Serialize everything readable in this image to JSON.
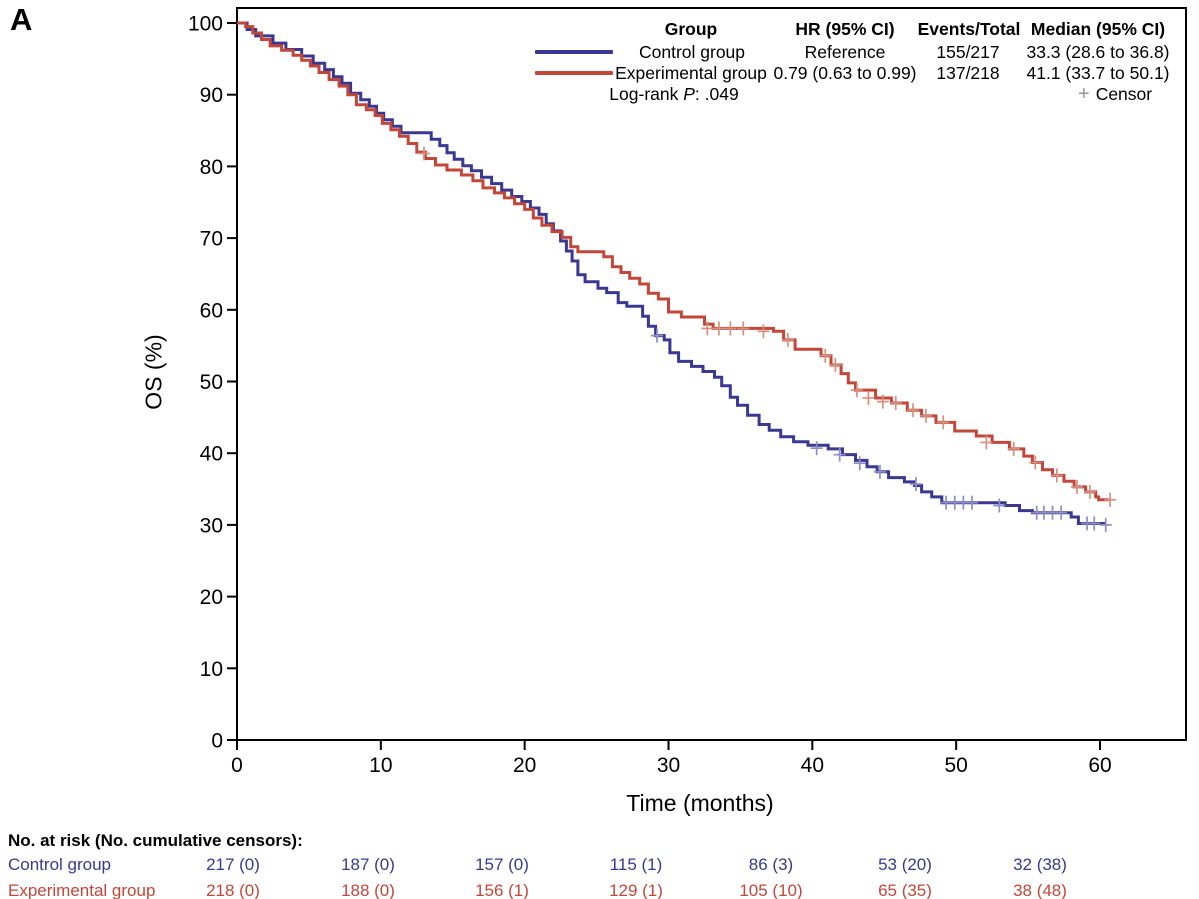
{
  "panel_label": "A",
  "colors": {
    "control": "#3a3890",
    "experimental": "#c2473a",
    "control_censor": "#8d8cc6",
    "experimental_censor": "#d6907f",
    "censor_key": "#9a9a9a",
    "axis": "#000000"
  },
  "legend": {
    "headers": {
      "group": "Group",
      "hr": "HR (95% CI)",
      "events": "Events/Total",
      "median": "Median (95% CI)"
    },
    "rows": [
      {
        "group": "Control group",
        "hr": "Reference",
        "events": "155/217",
        "median": "33.3 (28.6 to 36.8)"
      },
      {
        "group": "Experimental group",
        "hr": "0.79 (0.63 to 0.99)",
        "events": "137/218",
        "median": "41.1 (33.7 to 50.1)"
      }
    ],
    "logrank": {
      "prefix": "Log-rank ",
      "p": "P",
      "rest": ": .049"
    },
    "censor_symbol": "+",
    "censor_label": "Censor"
  },
  "chart_data": {
    "type": "line",
    "subtype": "kaplan-meier-step",
    "title": "",
    "xlabel": "Time (months)",
    "ylabel": "OS (%)",
    "xlim": [
      0,
      60
    ],
    "ylim": [
      0,
      100
    ],
    "xticks": [
      0,
      10,
      20,
      30,
      40,
      50,
      60
    ],
    "yticks": [
      0,
      10,
      20,
      30,
      40,
      50,
      60,
      70,
      80,
      90,
      100
    ],
    "grid": false,
    "legend_position": "top-right",
    "series": [
      {
        "name": "Control group",
        "color_key": "control",
        "censor_color_key": "control_censor",
        "steps": [
          [
            0,
            100
          ],
          [
            0.7,
            99.1
          ],
          [
            1.3,
            98.2
          ],
          [
            2.5,
            97.2
          ],
          [
            3.4,
            96.3
          ],
          [
            4.5,
            95.4
          ],
          [
            5.3,
            94.4
          ],
          [
            6.1,
            93.5
          ],
          [
            6.7,
            92.5
          ],
          [
            7.3,
            91.6
          ],
          [
            7.9,
            90.2
          ],
          [
            8.6,
            89.3
          ],
          [
            9.2,
            88.4
          ],
          [
            9.7,
            87.4
          ],
          [
            10.2,
            86.5
          ],
          [
            10.8,
            85.6
          ],
          [
            11.4,
            84.7
          ],
          [
            13.5,
            83.8
          ],
          [
            14.1,
            82.9
          ],
          [
            14.6,
            81.9
          ],
          [
            15.1,
            81.0
          ],
          [
            15.7,
            80.1
          ],
          [
            16.3,
            79.4
          ],
          [
            17.0,
            78.5
          ],
          [
            17.7,
            77.6
          ],
          [
            18.4,
            76.7
          ],
          [
            19.1,
            75.8
          ],
          [
            19.8,
            75.1
          ],
          [
            20.4,
            74.2
          ],
          [
            21.0,
            73.3
          ],
          [
            21.5,
            72.0
          ],
          [
            22.0,
            71.0
          ],
          [
            22.5,
            69.6
          ],
          [
            22.9,
            68.2
          ],
          [
            23.3,
            66.8
          ],
          [
            23.7,
            64.9
          ],
          [
            24.2,
            63.9
          ],
          [
            25.1,
            63.0
          ],
          [
            25.7,
            62.4
          ],
          [
            26.5,
            61.0
          ],
          [
            27.1,
            60.5
          ],
          [
            28.2,
            59.1
          ],
          [
            28.6,
            57.7
          ],
          [
            29.1,
            56.4
          ],
          [
            29.7,
            55.8
          ],
          [
            30.1,
            54.0
          ],
          [
            30.7,
            52.8
          ],
          [
            31.6,
            52.1
          ],
          [
            32.4,
            51.4
          ],
          [
            33.2,
            50.6
          ],
          [
            33.7,
            49.4
          ],
          [
            34.3,
            47.8
          ],
          [
            34.8,
            46.7
          ],
          [
            35.5,
            45.3
          ],
          [
            36.3,
            44.0
          ],
          [
            37.0,
            43.2
          ],
          [
            37.8,
            42.3
          ],
          [
            38.7,
            41.6
          ],
          [
            39.7,
            41.1
          ],
          [
            41.1,
            40.6
          ],
          [
            42.1,
            39.8
          ],
          [
            43.0,
            39.0
          ],
          [
            43.8,
            38.1
          ],
          [
            44.5,
            37.4
          ],
          [
            45.3,
            36.6
          ],
          [
            46.4,
            36.0
          ],
          [
            47.1,
            35.5
          ],
          [
            47.6,
            34.6
          ],
          [
            48.3,
            33.9
          ],
          [
            49.0,
            33.1
          ],
          [
            53.4,
            32.7
          ],
          [
            54.4,
            32.0
          ],
          [
            55.3,
            31.7
          ],
          [
            58.0,
            31.1
          ],
          [
            58.5,
            30.2
          ],
          [
            60.3,
            30.0
          ]
        ],
        "censors": [
          [
            29.2,
            56.4
          ],
          [
            40.3,
            40.7
          ],
          [
            41.9,
            39.8
          ],
          [
            43.3,
            38.6
          ],
          [
            44.7,
            37.4
          ],
          [
            47.2,
            35.7
          ],
          [
            49.3,
            33.1
          ],
          [
            49.9,
            33.1
          ],
          [
            50.5,
            33.1
          ],
          [
            51.1,
            33.1
          ],
          [
            53.0,
            32.7
          ],
          [
            55.6,
            31.7
          ],
          [
            56.1,
            31.7
          ],
          [
            56.7,
            31.7
          ],
          [
            57.3,
            31.7
          ],
          [
            59.1,
            30.2
          ],
          [
            59.6,
            30.2
          ],
          [
            60.4,
            30.0
          ]
        ]
      },
      {
        "name": "Experimental group",
        "color_key": "experimental",
        "censor_color_key": "experimental_censor",
        "steps": [
          [
            0,
            100
          ],
          [
            0.6,
            99.5
          ],
          [
            1.1,
            98.6
          ],
          [
            1.7,
            97.7
          ],
          [
            2.3,
            96.8
          ],
          [
            3.1,
            96.2
          ],
          [
            3.9,
            95.5
          ],
          [
            4.5,
            94.8
          ],
          [
            5.1,
            94.0
          ],
          [
            5.7,
            93.1
          ],
          [
            6.4,
            92.1
          ],
          [
            7.1,
            91.2
          ],
          [
            7.7,
            90.0
          ],
          [
            8.3,
            88.6
          ],
          [
            9.0,
            87.9
          ],
          [
            9.6,
            87.1
          ],
          [
            10.1,
            86.0
          ],
          [
            10.7,
            85.1
          ],
          [
            11.3,
            84.2
          ],
          [
            11.9,
            83.2
          ],
          [
            12.5,
            82.0
          ],
          [
            13.1,
            81.1
          ],
          [
            13.8,
            80.2
          ],
          [
            14.6,
            79.5
          ],
          [
            15.6,
            78.8
          ],
          [
            16.4,
            78.0
          ],
          [
            17.1,
            77.0
          ],
          [
            17.9,
            76.3
          ],
          [
            18.6,
            75.6
          ],
          [
            19.3,
            74.8
          ],
          [
            20.0,
            74.0
          ],
          [
            20.6,
            72.8
          ],
          [
            21.2,
            71.8
          ],
          [
            21.9,
            70.9
          ],
          [
            22.6,
            70.1
          ],
          [
            23.2,
            68.8
          ],
          [
            23.7,
            68.1
          ],
          [
            25.5,
            67.4
          ],
          [
            26.1,
            66.0
          ],
          [
            26.7,
            65.2
          ],
          [
            27.3,
            64.4
          ],
          [
            28.0,
            63.6
          ],
          [
            28.6,
            62.3
          ],
          [
            29.3,
            61.5
          ],
          [
            30.0,
            59.7
          ],
          [
            30.9,
            59.0
          ],
          [
            32.5,
            58.0
          ],
          [
            33.1,
            57.4
          ],
          [
            37.3,
            57.0
          ],
          [
            38.0,
            55.8
          ],
          [
            38.8,
            54.5
          ],
          [
            40.6,
            53.6
          ],
          [
            41.3,
            52.3
          ],
          [
            42.0,
            51.1
          ],
          [
            42.5,
            49.8
          ],
          [
            43.0,
            48.8
          ],
          [
            44.4,
            47.7
          ],
          [
            45.5,
            47.0
          ],
          [
            46.6,
            46.0
          ],
          [
            47.6,
            45.2
          ],
          [
            48.6,
            44.3
          ],
          [
            49.9,
            43.1
          ],
          [
            51.4,
            42.4
          ],
          [
            52.5,
            41.5
          ],
          [
            53.7,
            40.6
          ],
          [
            54.7,
            39.6
          ],
          [
            55.3,
            38.7
          ],
          [
            56.0,
            37.7
          ],
          [
            56.7,
            36.9
          ],
          [
            57.5,
            36.1
          ],
          [
            58.2,
            35.3
          ],
          [
            59.0,
            34.6
          ],
          [
            59.7,
            33.9
          ],
          [
            59.9,
            33.5
          ],
          [
            60.6,
            33.5
          ]
        ],
        "censors": [
          [
            13.0,
            81.8
          ],
          [
            32.7,
            57.4
          ],
          [
            33.5,
            57.4
          ],
          [
            34.3,
            57.4
          ],
          [
            35.2,
            57.4
          ],
          [
            36.6,
            57.0
          ],
          [
            38.3,
            55.8
          ],
          [
            40.9,
            53.6
          ],
          [
            41.6,
            52.3
          ],
          [
            43.1,
            48.8
          ],
          [
            43.9,
            47.7
          ],
          [
            44.9,
            47.2
          ],
          [
            45.8,
            47.0
          ],
          [
            47.0,
            46.0
          ],
          [
            47.9,
            45.2
          ],
          [
            49.1,
            44.3
          ],
          [
            52.1,
            41.5
          ],
          [
            54.0,
            40.6
          ],
          [
            55.5,
            38.7
          ],
          [
            57.0,
            36.9
          ],
          [
            58.4,
            35.3
          ],
          [
            59.3,
            34.6
          ],
          [
            60.7,
            33.5
          ]
        ]
      }
    ]
  },
  "risk_table": {
    "title": "No. at risk (No. cumulative censors):",
    "times": [
      0,
      10,
      20,
      30,
      40,
      50,
      60
    ],
    "rows": [
      {
        "label": "Control group",
        "color_key": "control",
        "counts": [
          "217 (0)",
          "187 (0)",
          "157 (0)",
          "115 (1)",
          "86 (3)",
          "53 (20)",
          "32 (38)"
        ]
      },
      {
        "label": "Experimental group",
        "color_key": "experimental",
        "counts": [
          "218 (0)",
          "188 (0)",
          "156 (1)",
          "129 (1)",
          "105 (10)",
          "65 (35)",
          "38 (48)"
        ]
      }
    ]
  }
}
